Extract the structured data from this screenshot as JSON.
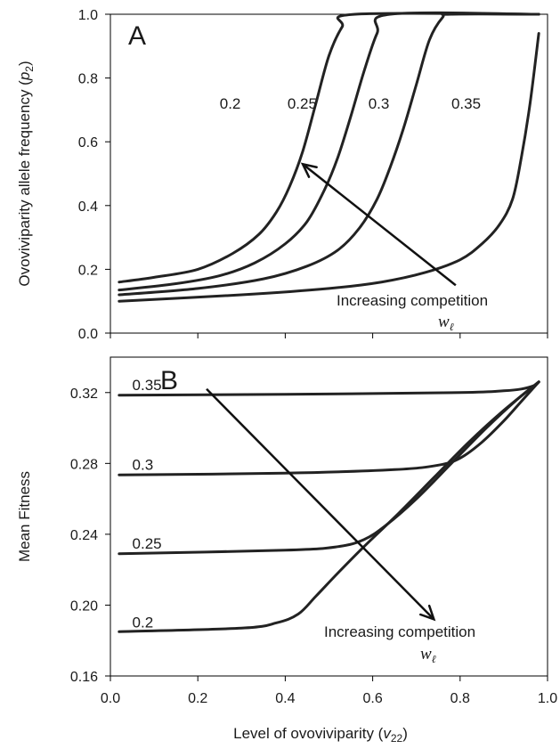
{
  "chart_data": [
    {
      "type": "line",
      "panel_label": "A",
      "ylabel_main": "Ovoviviparity allele frequency (",
      "ylabel_var": "p",
      "ylabel_sub": "2",
      "ylabel_close": ")",
      "ylim": [
        0,
        1.0
      ],
      "yticks": [
        "0.0",
        "0.2",
        "0.4",
        "0.6",
        "0.8",
        "1.0"
      ],
      "xlim": [
        0,
        1.0
      ],
      "grid": false,
      "series": [
        {
          "label": "0.2",
          "points": [
            [
              0.02,
              0.16
            ],
            [
              0.1,
              0.175
            ],
            [
              0.2,
              0.2
            ],
            [
              0.28,
              0.25
            ],
            [
              0.34,
              0.31
            ],
            [
              0.38,
              0.38
            ],
            [
              0.41,
              0.46
            ],
            [
              0.44,
              0.57
            ],
            [
              0.47,
              0.72
            ],
            [
              0.5,
              0.87
            ],
            [
              0.53,
              0.96
            ],
            [
              0.56,
              1.0
            ],
            [
              0.98,
              1.0
            ]
          ]
        },
        {
          "label": "0.25",
          "points": [
            [
              0.02,
              0.135
            ],
            [
              0.15,
              0.155
            ],
            [
              0.25,
              0.18
            ],
            [
              0.33,
              0.22
            ],
            [
              0.4,
              0.28
            ],
            [
              0.45,
              0.35
            ],
            [
              0.49,
              0.45
            ],
            [
              0.52,
              0.55
            ],
            [
              0.55,
              0.68
            ],
            [
              0.58,
              0.82
            ],
            [
              0.61,
              0.94
            ],
            [
              0.64,
              1.0
            ],
            [
              0.98,
              1.0
            ]
          ]
        },
        {
          "label": "0.3",
          "points": [
            [
              0.02,
              0.12
            ],
            [
              0.2,
              0.14
            ],
            [
              0.35,
              0.17
            ],
            [
              0.45,
              0.21
            ],
            [
              0.52,
              0.26
            ],
            [
              0.57,
              0.33
            ],
            [
              0.61,
              0.42
            ],
            [
              0.64,
              0.52
            ],
            [
              0.67,
              0.64
            ],
            [
              0.7,
              0.78
            ],
            [
              0.73,
              0.92
            ],
            [
              0.76,
              0.99
            ],
            [
              0.78,
              1.0
            ],
            [
              0.98,
              1.0
            ]
          ]
        },
        {
          "label": "0.35",
          "points": [
            [
              0.02,
              0.1
            ],
            [
              0.3,
              0.12
            ],
            [
              0.5,
              0.14
            ],
            [
              0.62,
              0.16
            ],
            [
              0.72,
              0.19
            ],
            [
              0.8,
              0.23
            ],
            [
              0.85,
              0.28
            ],
            [
              0.89,
              0.34
            ],
            [
              0.92,
              0.42
            ],
            [
              0.94,
              0.55
            ],
            [
              0.96,
              0.72
            ],
            [
              0.98,
              0.94
            ]
          ]
        }
      ],
      "curve_labels": [
        {
          "text": "0.2",
          "x": 0.25,
          "y": 0.72
        },
        {
          "text": "0.25",
          "x": 0.405,
          "y": 0.72
        },
        {
          "text": "0.3",
          "x": 0.59,
          "y": 0.72
        },
        {
          "text": "0.35",
          "x": 0.78,
          "y": 0.72
        }
      ],
      "arrow": {
        "from": [
          0.79,
          0.15
        ],
        "to": [
          0.44,
          0.53
        ]
      },
      "annotation": {
        "line1": "Increasing competition",
        "symbol": "w",
        "symbol_sub": "ℓ"
      }
    },
    {
      "type": "line",
      "panel_label": "B",
      "ylabel": "Mean Fitness",
      "ylim": [
        0.16,
        0.34
      ],
      "yticks": [
        "0.16",
        "0.20",
        "0.24",
        "0.28",
        "0.32"
      ],
      "xlabel_main": "Level of ovoviviparity (",
      "xlabel_var": "v",
      "xlabel_sub": "22",
      "xlabel_close": ")",
      "xlim": [
        0,
        1.0
      ],
      "xticks": [
        "0.0",
        "0.2",
        "0.4",
        "0.6",
        "0.8",
        "1.0"
      ],
      "grid": false,
      "series": [
        {
          "label": "0.35",
          "points": [
            [
              0.02,
              0.3185
            ],
            [
              0.4,
              0.319
            ],
            [
              0.8,
              0.32
            ],
            [
              0.9,
              0.321
            ],
            [
              0.94,
              0.322
            ],
            [
              0.97,
              0.324
            ],
            [
              0.98,
              0.326
            ]
          ]
        },
        {
          "label": "0.3",
          "points": [
            [
              0.02,
              0.2735
            ],
            [
              0.4,
              0.2745
            ],
            [
              0.65,
              0.2765
            ],
            [
              0.75,
              0.279
            ],
            [
              0.8,
              0.283
            ],
            [
              0.85,
              0.292
            ],
            [
              0.9,
              0.304
            ],
            [
              0.94,
              0.315
            ],
            [
              0.98,
              0.326
            ]
          ]
        },
        {
          "label": "0.25",
          "points": [
            [
              0.02,
              0.229
            ],
            [
              0.4,
              0.231
            ],
            [
              0.52,
              0.233
            ],
            [
              0.58,
              0.237
            ],
            [
              0.63,
              0.245
            ],
            [
              0.7,
              0.26
            ],
            [
              0.78,
              0.28
            ],
            [
              0.86,
              0.3
            ],
            [
              0.93,
              0.316
            ],
            [
              0.98,
              0.326
            ]
          ]
        },
        {
          "label": "0.2",
          "points": [
            [
              0.02,
              0.185
            ],
            [
              0.3,
              0.187
            ],
            [
              0.38,
              0.19
            ],
            [
              0.43,
              0.195
            ],
            [
              0.47,
              0.205
            ],
            [
              0.52,
              0.218
            ],
            [
              0.58,
              0.233
            ],
            [
              0.66,
              0.252
            ],
            [
              0.74,
              0.272
            ],
            [
              0.82,
              0.292
            ],
            [
              0.9,
              0.31
            ],
            [
              0.98,
              0.326
            ]
          ]
        }
      ],
      "curve_labels": [
        {
          "text": "0.35",
          "x": 0.05,
          "y": 0.3245
        },
        {
          "text": "0.3",
          "x": 0.05,
          "y": 0.2795
        },
        {
          "text": "0.25",
          "x": 0.05,
          "y": 0.235
        },
        {
          "text": "0.2",
          "x": 0.05,
          "y": 0.1905
        }
      ],
      "arrow": {
        "from": [
          0.22,
          0.322
        ],
        "to": [
          0.74,
          0.192
        ]
      },
      "annotation": {
        "line1": "Increasing competition",
        "symbol": "w",
        "symbol_sub": "ℓ"
      }
    }
  ]
}
